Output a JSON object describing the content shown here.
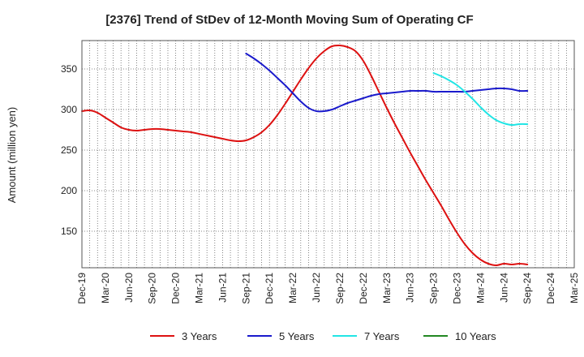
{
  "chart_data": {
    "type": "line",
    "title": "[2376]  Trend of StDev of 12-Month Moving Sum of Operating CF",
    "ylabel": "Amount (million yen)",
    "xlabel": "",
    "ylim": [
      105,
      385
    ],
    "yticks": [
      150,
      200,
      250,
      300,
      350
    ],
    "x_ticks": [
      "Dec-19",
      "Mar-20",
      "Jun-20",
      "Sep-20",
      "Dec-20",
      "Mar-21",
      "Jun-21",
      "Sep-21",
      "Dec-21",
      "Mar-22",
      "Jun-22",
      "Sep-22",
      "Dec-22",
      "Mar-23",
      "Jun-23",
      "Sep-23",
      "Dec-23",
      "Mar-24",
      "Jun-24",
      "Sep-24",
      "Dec-24",
      "Mar-25"
    ],
    "grid": true,
    "legend_position": "bottom",
    "series": [
      {
        "name": "3 Years",
        "color": "#dd1111",
        "x": [
          "Dec-19",
          "Jan-20",
          "Feb-20",
          "Mar-20",
          "Apr-20",
          "May-20",
          "Jun-20",
          "Jul-20",
          "Aug-20",
          "Sep-20",
          "Oct-20",
          "Nov-20",
          "Dec-20",
          "Jan-21",
          "Feb-21",
          "Mar-21",
          "Apr-21",
          "May-21",
          "Jun-21",
          "Jul-21",
          "Aug-21",
          "Sep-21",
          "Oct-21",
          "Nov-21",
          "Dec-21",
          "Jan-22",
          "Feb-22",
          "Mar-22",
          "Apr-22",
          "May-22",
          "Jun-22",
          "Jul-22",
          "Aug-22",
          "Sep-22",
          "Oct-22",
          "Nov-22",
          "Dec-22",
          "Jan-23",
          "Feb-23",
          "Mar-23",
          "Apr-23",
          "May-23",
          "Jun-23",
          "Jul-23",
          "Aug-23",
          "Sep-23",
          "Oct-23",
          "Nov-23",
          "Dec-23",
          "Jan-24",
          "Feb-24",
          "Mar-24",
          "Apr-24",
          "May-24",
          "Jun-24",
          "Jul-24",
          "Aug-24",
          "Sep-24"
        ],
        "values": [
          298,
          299,
          296,
          290,
          284,
          278,
          275,
          274,
          275,
          276,
          276,
          275,
          274,
          273,
          272,
          270,
          268,
          266,
          264,
          262,
          261,
          262,
          266,
          272,
          281,
          293,
          307,
          322,
          337,
          351,
          363,
          372,
          378,
          379,
          377,
          372,
          360,
          342,
          322,
          302,
          283,
          265,
          247,
          230,
          213,
          197,
          181,
          164,
          148,
          134,
          123,
          115,
          110,
          108,
          110,
          109,
          110,
          109
        ]
      },
      {
        "name": "5 Years",
        "color": "#1a1acc",
        "x": [
          "Sep-21",
          "Oct-21",
          "Nov-21",
          "Dec-21",
          "Jan-22",
          "Feb-22",
          "Mar-22",
          "Apr-22",
          "May-22",
          "Jun-22",
          "Jul-22",
          "Aug-22",
          "Sep-22",
          "Oct-22",
          "Nov-22",
          "Dec-22",
          "Jan-23",
          "Feb-23",
          "Mar-23",
          "Apr-23",
          "May-23",
          "Jun-23",
          "Jul-23",
          "Aug-23",
          "Sep-23",
          "Oct-23",
          "Nov-23",
          "Dec-23",
          "Jan-24",
          "Feb-24",
          "Mar-24",
          "Apr-24",
          "May-24",
          "Jun-24",
          "Jul-24",
          "Aug-24",
          "Sep-24"
        ],
        "values": [
          369,
          363,
          356,
          348,
          339,
          330,
          320,
          310,
          302,
          298,
          298,
          300,
          304,
          308,
          311,
          314,
          317,
          319,
          320,
          321,
          322,
          323,
          323,
          323,
          322,
          322,
          322,
          322,
          322,
          323,
          324,
          325,
          326,
          326,
          325,
          323,
          323
        ]
      },
      {
        "name": "7 Years",
        "color": "#22e5e5",
        "x": [
          "Sep-23",
          "Oct-23",
          "Nov-23",
          "Dec-23",
          "Jan-24",
          "Feb-24",
          "Mar-24",
          "Apr-24",
          "May-24",
          "Jun-24",
          "Jul-24",
          "Aug-24",
          "Sep-24"
        ],
        "values": [
          345,
          341,
          336,
          330,
          322,
          313,
          303,
          294,
          287,
          283,
          281,
          282,
          282
        ]
      },
      {
        "name": "10 Years",
        "color": "#228822",
        "x": [],
        "values": []
      }
    ]
  }
}
